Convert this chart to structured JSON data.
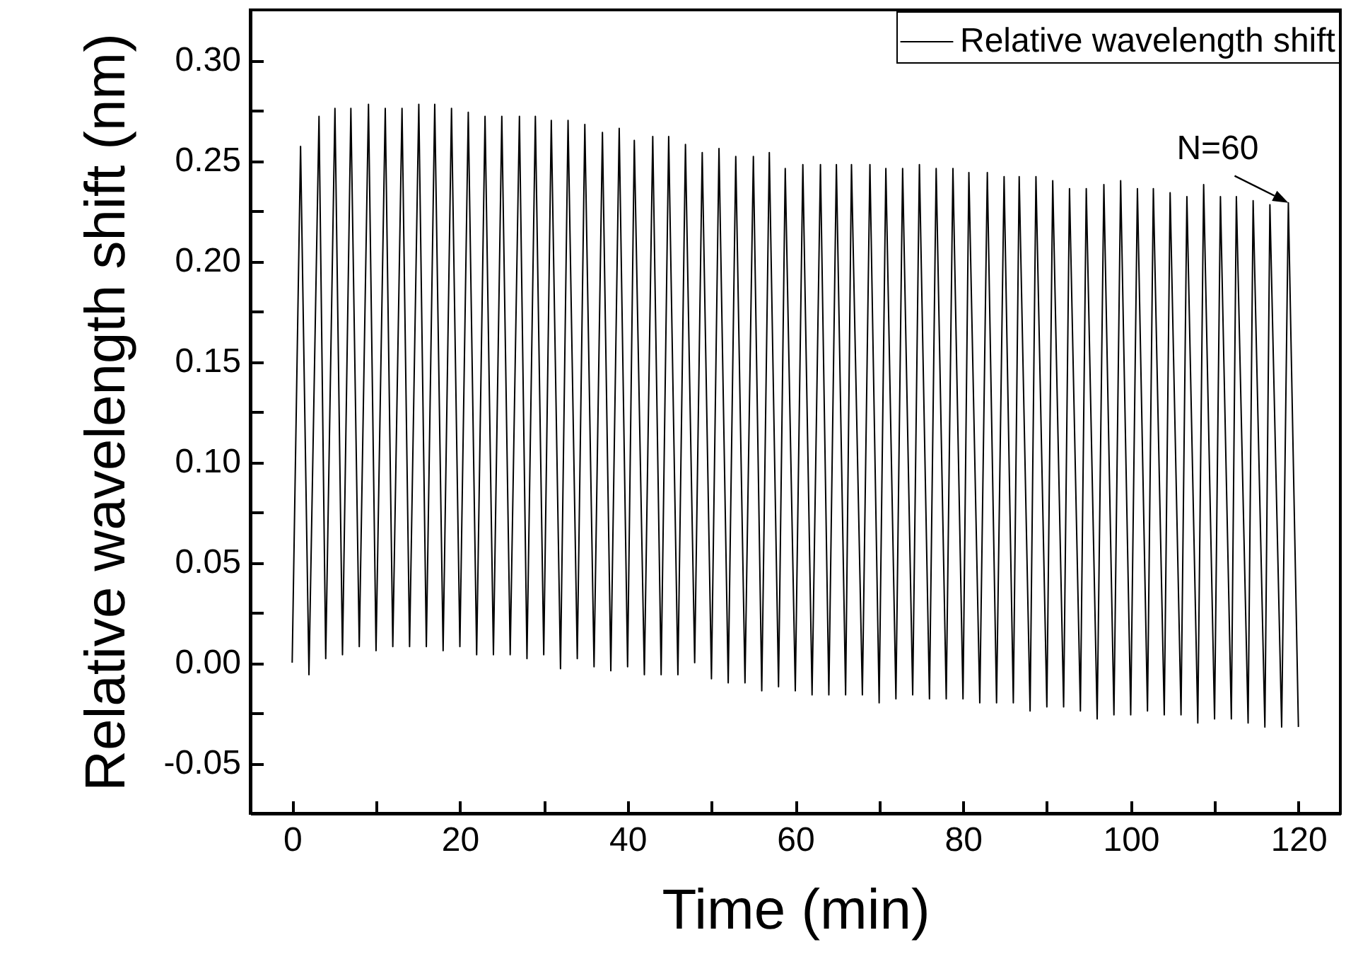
{
  "chart_data": {
    "type": "line",
    "xlabel": "Time (min)",
    "ylabel": "Relative wavelength shift (nm)",
    "xlim": [
      -5,
      125
    ],
    "ylim": [
      -0.075,
      0.325
    ],
    "xticks": [
      0,
      {
        "value": 10,
        "label": null
      },
      20,
      {
        "value": 30,
        "label": null
      },
      40,
      {
        "value": 50,
        "label": null
      },
      60,
      {
        "value": 70,
        "label": null
      },
      80,
      {
        "value": 90,
        "label": null
      },
      100,
      {
        "value": 110,
        "label": null
      },
      120
    ],
    "yticks": [
      {
        "value": -0.05,
        "label": "-0.05"
      },
      {
        "value": -0.025,
        "label": null
      },
      {
        "value": 0,
        "label": "0.00"
      },
      {
        "value": 0.025,
        "label": null
      },
      {
        "value": 0.05,
        "label": "0.05"
      },
      {
        "value": 0.075,
        "label": null
      },
      {
        "value": 0.1,
        "label": "0.10"
      },
      {
        "value": 0.125,
        "label": null
      },
      {
        "value": 0.15,
        "label": "0.15"
      },
      {
        "value": 0.175,
        "label": null
      },
      {
        "value": 0.2,
        "label": "0.20"
      },
      {
        "value": 0.225,
        "label": null
      },
      {
        "value": 0.25,
        "label": "0.25"
      },
      {
        "value": 0.275,
        "label": null
      },
      {
        "value": 0.3,
        "label": "0.30"
      }
    ],
    "grid": false,
    "legend": "top right",
    "line_style": "solid",
    "annotations": [
      {
        "text": "N=60",
        "x": 118.8,
        "y": 0.229
      }
    ],
    "series": [
      {
        "name": "Relative wavelength shift",
        "color": "#000000",
        "x": [
          0,
          1.0,
          2,
          3.2,
          4,
          5.1,
          6,
          7.0,
          8,
          9.1,
          10,
          11.1,
          12,
          13.1,
          14,
          15.1,
          16,
          17.0,
          18,
          19.0,
          20,
          21.0,
          22,
          23.0,
          24,
          25.0,
          26,
          27.1,
          28,
          29.0,
          30,
          30.9,
          32,
          32.9,
          34,
          34.9,
          36,
          37.0,
          38,
          39.0,
          40,
          40.8,
          42,
          43.0,
          44,
          44.9,
          46,
          46.9,
          48,
          48.9,
          50,
          50.9,
          52,
          52.9,
          54,
          55.0,
          56,
          56.9,
          58,
          58.8,
          60,
          60.9,
          62,
          63.0,
          64,
          64.9,
          66,
          66.7,
          68,
          68.9,
          70,
          70.8,
          72,
          72.8,
          74,
          74.8,
          76,
          76.8,
          78,
          78.8,
          80,
          80.7,
          82,
          82.9,
          84,
          84.9,
          86,
          86.7,
          88,
          88.7,
          90,
          90.7,
          92,
          92.7,
          94,
          94.7,
          96,
          96.8,
          98,
          98.8,
          100,
          100.8,
          102,
          102.7,
          104,
          104.7,
          106,
          106.7,
          108,
          108.7,
          110,
          110.7,
          112,
          112.6,
          114,
          114.6,
          116,
          116.6,
          118,
          118.8,
          120
        ],
        "values": [
          0.0,
          0.257,
          -0.006,
          0.272,
          0.002,
          0.276,
          0.004,
          0.276,
          0.008,
          0.278,
          0.006,
          0.276,
          0.008,
          0.276,
          0.008,
          0.278,
          0.008,
          0.278,
          0.006,
          0.276,
          0.008,
          0.274,
          0.004,
          0.272,
          0.004,
          0.272,
          0.004,
          0.272,
          0.002,
          0.272,
          0.004,
          0.27,
          -0.003,
          0.27,
          0.002,
          0.268,
          -0.002,
          0.264,
          -0.004,
          0.266,
          -0.002,
          0.26,
          -0.006,
          0.262,
          -0.006,
          0.262,
          -0.006,
          0.258,
          0.0,
          0.254,
          -0.008,
          0.256,
          -0.01,
          0.252,
          -0.01,
          0.252,
          -0.014,
          0.254,
          -0.012,
          0.246,
          -0.014,
          0.248,
          -0.016,
          0.248,
          -0.016,
          0.248,
          -0.016,
          0.248,
          -0.016,
          0.248,
          -0.02,
          0.246,
          -0.018,
          0.246,
          -0.016,
          0.248,
          -0.018,
          0.246,
          -0.018,
          0.246,
          -0.018,
          0.244,
          -0.02,
          0.244,
          -0.02,
          0.242,
          -0.02,
          0.242,
          -0.024,
          0.242,
          -0.022,
          0.24,
          -0.022,
          0.236,
          -0.024,
          0.236,
          -0.028,
          0.238,
          -0.026,
          0.24,
          -0.026,
          0.236,
          -0.024,
          0.236,
          -0.026,
          0.234,
          -0.026,
          0.232,
          -0.03,
          0.238,
          -0.028,
          0.232,
          -0.028,
          0.232,
          -0.03,
          0.23,
          -0.032,
          0.228,
          -0.032,
          0.229,
          -0.032
        ]
      }
    ]
  }
}
